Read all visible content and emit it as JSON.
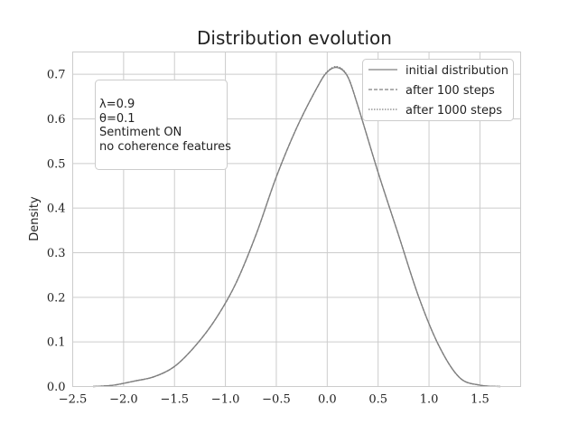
{
  "chart_data": {
    "type": "line",
    "title": "Distribution evolution",
    "xlabel": "",
    "ylabel": "Density",
    "xlim": [
      -2.5,
      1.9
    ],
    "ylim": [
      0.0,
      0.75
    ],
    "xticks": [
      "−2.5",
      "−2.0",
      "−1.5",
      "−1.0",
      "−0.5",
      "0.0",
      "0.5",
      "1.0",
      "1.5"
    ],
    "xtick_values": [
      -2.5,
      -2.0,
      -1.5,
      -1.0,
      -0.5,
      0.0,
      0.5,
      1.0,
      1.5
    ],
    "yticks": [
      "0.0",
      "0.1",
      "0.2",
      "0.3",
      "0.4",
      "0.5",
      "0.6",
      "0.7"
    ],
    "ytick_values": [
      0.0,
      0.1,
      0.2,
      0.3,
      0.4,
      0.5,
      0.6,
      0.7
    ],
    "grid": true,
    "legend_position": "top-right",
    "annotation": [
      "λ=0.9",
      "θ=0.1",
      "Sentiment ON",
      "no coherence features"
    ],
    "x": [
      -2.3,
      -2.1,
      -1.9,
      -1.7,
      -1.5,
      -1.3,
      -1.1,
      -0.9,
      -0.7,
      -0.5,
      -0.3,
      -0.1,
      0.0,
      0.1,
      0.2,
      0.3,
      0.5,
      0.7,
      0.9,
      1.1,
      1.3,
      1.5,
      1.7
    ],
    "series": [
      {
        "name": "initial distribution",
        "style": "solid",
        "color": "#808080",
        "values": [
          0.0,
          0.003,
          0.012,
          0.022,
          0.045,
          0.09,
          0.15,
          0.23,
          0.34,
          0.47,
          0.58,
          0.67,
          0.705,
          0.715,
          0.695,
          0.63,
          0.48,
          0.34,
          0.2,
          0.09,
          0.02,
          0.003,
          0.0
        ]
      },
      {
        "name": "after 100 steps",
        "style": "dashed",
        "color": "#808080",
        "values": [
          0.0,
          0.003,
          0.012,
          0.022,
          0.045,
          0.09,
          0.15,
          0.23,
          0.34,
          0.47,
          0.58,
          0.67,
          0.705,
          0.716,
          0.695,
          0.63,
          0.48,
          0.34,
          0.2,
          0.09,
          0.02,
          0.003,
          0.0
        ]
      },
      {
        "name": "after 1000 steps",
        "style": "dotted",
        "color": "#808080",
        "values": [
          0.0,
          0.003,
          0.012,
          0.022,
          0.045,
          0.09,
          0.15,
          0.23,
          0.34,
          0.47,
          0.58,
          0.67,
          0.706,
          0.717,
          0.696,
          0.63,
          0.48,
          0.34,
          0.2,
          0.09,
          0.02,
          0.003,
          0.0
        ]
      }
    ]
  }
}
